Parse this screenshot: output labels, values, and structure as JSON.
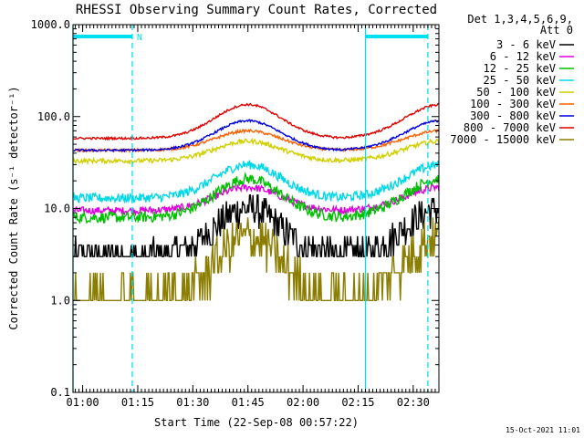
{
  "chart_data": {
    "type": "line",
    "title": "RHESSI Observing Summary Count Rates, Corrected",
    "xlabel": "Start Time (22-Sep-08 00:57:22)",
    "ylabel": "Corrected Count Rate (s⁻¹ detector⁻¹)",
    "yscale": "log",
    "ylim": [
      0.1,
      1000.0
    ],
    "yticks": [
      "1000.0",
      "100.0",
      "10.0",
      "1.0",
      "0.1"
    ],
    "xlim": [
      "00:57:22",
      "02:37:00"
    ],
    "xticks": [
      "01:00",
      "01:15",
      "01:30",
      "01:45",
      "02:00",
      "02:15",
      "02:30"
    ],
    "grid": false,
    "legend_header": [
      "Det 1,3,4,5,6,9,",
      "Att 0"
    ],
    "legend_position": "right",
    "series": [
      {
        "name": "3 - 6 keV",
        "color": "#000000",
        "base": 3.0,
        "peak": 10.0,
        "noise": 0.18,
        "quantized": true
      },
      {
        "name": "6 - 12 keV",
        "color": "#e000e0",
        "base": 9.5,
        "peak": 17.0,
        "noise": 0.04
      },
      {
        "name": "12 - 25 keV",
        "color": "#00c000",
        "base": 8.0,
        "peak": 21.0,
        "noise": 0.06
      },
      {
        "name": "25 - 50 keV",
        "color": "#00d8e8",
        "base": 13.0,
        "peak": 30.0,
        "noise": 0.05
      },
      {
        "name": "50 - 100 keV",
        "color": "#d0d000",
        "base": 33.0,
        "peak": 54.0,
        "noise": 0.025
      },
      {
        "name": "100 - 300 keV",
        "color": "#ff6000",
        "base": 43.0,
        "peak": 70.0,
        "noise": 0.015
      },
      {
        "name": "300 - 800 keV",
        "color": "#0000e0",
        "base": 43.0,
        "peak": 90.0,
        "noise": 0.012
      },
      {
        "name": "800 - 7000 keV",
        "color": "#e00000",
        "base": 58.0,
        "peak": 135.0,
        "noise": 0.012
      },
      {
        "name": "7000 - 15000 keV",
        "color": "#8b7d00",
        "base": 1.0,
        "peak": 5.0,
        "noise": 0.25,
        "quantized": true
      }
    ],
    "annotations": [
      {
        "type": "bar",
        "label": "N",
        "color": "#00e0f0"
      },
      {
        "type": "vline",
        "time": "00:57:22",
        "color": "#00e0f0",
        "style": "solid"
      },
      {
        "type": "vline",
        "time": "01:13:30",
        "color": "#00e0f0",
        "style": "dashed"
      },
      {
        "type": "vline",
        "time": "02:17:00",
        "color": "#00e0f0",
        "style": "solid"
      },
      {
        "type": "vline",
        "time": "02:34:00",
        "color": "#00e0f0",
        "style": "dashed"
      }
    ]
  },
  "footer": {
    "timestamp": "15-Oct-2021 11:01"
  }
}
